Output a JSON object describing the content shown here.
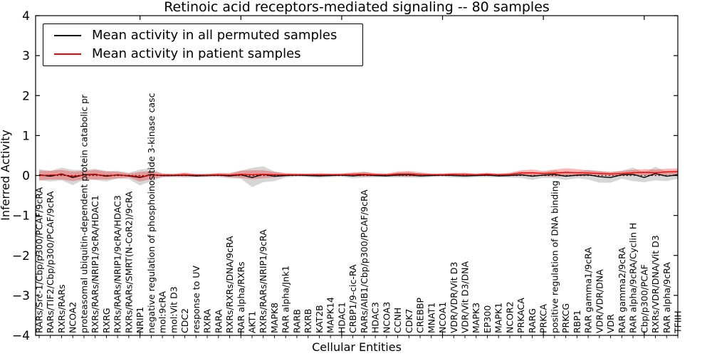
{
  "figure": {
    "title": "Retinoic acid receptors-mediated signaling -- 80 samples",
    "xlabel": "Cellular Entities",
    "ylabel": "Inferred Activity"
  },
  "legend": {
    "items": [
      {
        "label": "Mean activity in all permuted samples",
        "color": "#000000"
      },
      {
        "label": "Mean activity in patient samples",
        "color": "#ff0000"
      }
    ]
  },
  "chart_data": {
    "type": "line",
    "title": "Retinoic acid receptors-mediated signaling -- 80 samples",
    "xlabel": "Cellular Entities",
    "ylabel": "Inferred Activity",
    "ylim": [
      -4,
      4
    ],
    "yticks": [
      4,
      3,
      2,
      1,
      0,
      -1,
      -2,
      -3,
      -4
    ],
    "grid": false,
    "zero_line_style": "dotted",
    "legend_position": "upper left",
    "categories": [
      "RARs/Src-1/Cbp/p300/PCAF/9cRA",
      "RARs/TIF2/Cbp/p300/PCAF/9cRA",
      "RXRs/RARs",
      "NCOA2",
      "proteasomal ubiquitin-dependent protein catabolic pr",
      "RXRs/RARs/NRIP1/9cRA/HDAC1",
      "RXRG",
      "RXRs/RARs/NRIP1/9cRA/HDAC3",
      "RXRs/RARs/SMRT(N-CoR2)/9cRA",
      "NRIP1",
      "negative regulation of phosphoinositide 3-kinase casc",
      "mol:9cRA",
      "mol:Vit D3",
      "CDC2",
      "response to UV",
      "RXRA",
      "RARA",
      "RXRs/RXRs/DNA/9cRA",
      "RAR alpha/RXRs",
      "AKT1",
      "RXRs/RARs/NRIP1/9cRA",
      "MAPK8",
      "RAR alpha/Jnk1",
      "RARB",
      "RXRB",
      "KAT2B",
      "MAPK14",
      "HDAC1",
      "CRBP1/9-cic-RA",
      "RARs/AIB1/Cbp/p300/PCAF/9cRA",
      "HDAC3",
      "NCOA3",
      "CCNH",
      "CDK7",
      "CREBBP",
      "MNAT1",
      "NCOA1",
      "VDR/VDR/Vit D3",
      "VDR/Vit D3/DNA",
      "MAPK3",
      "EP300",
      "MAPK1",
      "NCOR2",
      "PRKACA",
      "RARG",
      "PRKCA",
      "positive regulation of DNA binding",
      "PRKCG",
      "RBP1",
      "RAR gamma1/9cRA",
      "VDR/VDR/DNA",
      "VDR",
      "RAR gamma2/9cRA",
      "RAR alpha/9cRA/Cyclin H",
      "Cbp/p300/PCAF",
      "RXRs/VDR/DNA/Vit D3",
      "RAR alpha/9cRA",
      "TFIIH"
    ],
    "series": [
      {
        "name": "Mean activity in all permuted samples",
        "color": "#000000",
        "band_color": "rgba(0,0,0,0.16)",
        "values": [
          0.02,
          -0.02,
          0.04,
          -0.05,
          0.02,
          0.03,
          -0.02,
          0.02,
          -0.01,
          -0.05,
          0.02,
          0.0,
          0.0,
          0.01,
          -0.01,
          0.0,
          0.01,
          -0.01,
          0.02,
          -0.05,
          0.03,
          -0.02,
          0.0,
          0.01,
          0.0,
          -0.01,
          0.0,
          0.01,
          -0.01,
          0.02,
          0.0,
          -0.01,
          0.01,
          0.02,
          -0.01,
          0.0,
          0.01,
          0.0,
          -0.01,
          0.0,
          0.01,
          -0.01,
          0.0,
          0.02,
          -0.02,
          0.01,
          0.03,
          -0.02,
          0.01,
          0.02,
          -0.03,
          -0.05,
          0.02,
          0.03,
          -0.05,
          0.05,
          -0.02,
          0.02
        ],
        "std": [
          0.14,
          0.13,
          0.16,
          0.19,
          0.12,
          0.14,
          0.13,
          0.1,
          0.08,
          0.2,
          0.16,
          0.05,
          0.04,
          0.06,
          0.04,
          0.04,
          0.05,
          0.06,
          0.1,
          0.24,
          0.2,
          0.12,
          0.05,
          0.04,
          0.04,
          0.05,
          0.04,
          0.04,
          0.06,
          0.07,
          0.05,
          0.04,
          0.06,
          0.07,
          0.05,
          0.04,
          0.04,
          0.05,
          0.05,
          0.04,
          0.05,
          0.04,
          0.05,
          0.08,
          0.09,
          0.07,
          0.1,
          0.09,
          0.08,
          0.12,
          0.15,
          0.13,
          0.1,
          0.17,
          0.12,
          0.17,
          0.12,
          0.1
        ]
      },
      {
        "name": "Mean activity in patient samples",
        "color": "#ff0000",
        "band_color": "rgba(255,0,0,0.28)",
        "values": [
          0.0,
          0.01,
          0.02,
          -0.02,
          0.01,
          0.02,
          0.0,
          0.01,
          0.0,
          -0.03,
          0.01,
          0.01,
          0.01,
          0.02,
          0.01,
          0.01,
          0.02,
          0.01,
          0.03,
          0.02,
          0.03,
          0.02,
          0.02,
          0.02,
          0.02,
          0.02,
          0.02,
          0.02,
          0.03,
          0.03,
          0.02,
          0.02,
          0.04,
          0.04,
          0.03,
          0.02,
          0.02,
          0.03,
          0.03,
          0.02,
          0.03,
          0.02,
          0.03,
          0.06,
          0.07,
          0.05,
          0.06,
          0.08,
          0.07,
          0.06,
          0.05,
          0.04,
          0.05,
          0.07,
          0.08,
          0.07,
          0.09,
          0.1
        ],
        "std": [
          0.12,
          0.11,
          0.12,
          0.12,
          0.1,
          0.12,
          0.1,
          0.08,
          0.05,
          0.12,
          0.1,
          0.04,
          0.03,
          0.05,
          0.03,
          0.03,
          0.04,
          0.05,
          0.09,
          0.11,
          0.1,
          0.07,
          0.04,
          0.03,
          0.03,
          0.04,
          0.03,
          0.03,
          0.05,
          0.06,
          0.04,
          0.03,
          0.06,
          0.07,
          0.05,
          0.03,
          0.03,
          0.04,
          0.04,
          0.03,
          0.04,
          0.03,
          0.04,
          0.07,
          0.08,
          0.06,
          0.09,
          0.1,
          0.09,
          0.07,
          0.05,
          0.05,
          0.06,
          0.07,
          0.08,
          0.08,
          0.08,
          0.08
        ]
      }
    ]
  }
}
